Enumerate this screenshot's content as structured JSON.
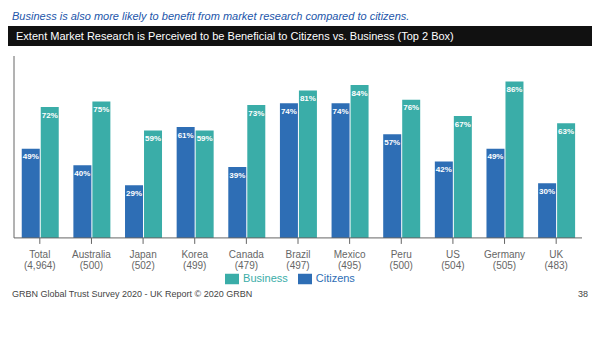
{
  "chart_data": {
    "type": "bar",
    "title": "Extent Market Research is Perceived to be Beneficial to Citizens vs. Business (Top 2 Box)",
    "subtitle": "Business is also more likely to benefit from market research compared to citizens.",
    "annotations": [
      "GRBN Global Trust Survey 2020 - UK Report © 2020 GRBN",
      "38"
    ],
    "categories": [
      "Total\n(4,964)",
      "Australia\n(500)",
      "Japan\n(502)",
      "Korea\n(499)",
      "Canada\n(479)",
      "Brazil\n(497)",
      "Mexico\n(495)",
      "Peru\n(500)",
      "US\n(504)",
      "Germany\n(505)",
      "UK\n(483)"
    ],
    "series": [
      {
        "name": "Citizens",
        "color": "#2e6eb5",
        "values": [
          49,
          40,
          29,
          61,
          39,
          74,
          74,
          57,
          42,
          49,
          30
        ],
        "value_labels": [
          "49%",
          "40%",
          "29%",
          "61%",
          "39%",
          "74%",
          "74%",
          "57%",
          "42%",
          "49%",
          "30%"
        ]
      },
      {
        "name": "Business",
        "color": "#3aada8",
        "values": [
          72,
          75,
          59,
          59,
          73,
          81,
          84,
          76,
          67,
          86,
          63
        ],
        "value_labels": [
          "72%",
          "75%",
          "59%",
          "59%",
          "73%",
          "81%",
          "84%",
          "76%",
          "67%",
          "86%",
          "63%"
        ]
      }
    ],
    "ylim": [
      0,
      100
    ],
    "grid": false,
    "legend": "bottom",
    "data_labels": true,
    "tick_labels": "x"
  }
}
